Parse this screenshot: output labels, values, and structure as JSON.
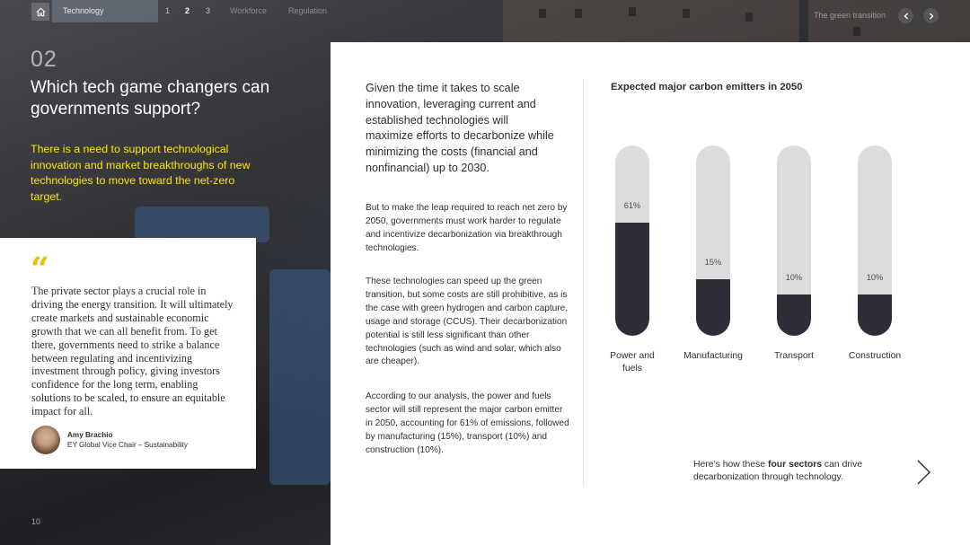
{
  "nav": {
    "section_label": "Technology",
    "pages": [
      "1",
      "2",
      "3"
    ],
    "current_page": "2",
    "workforce_label": "Workforce",
    "regulation_label": "Regulation",
    "right_label": "The green transition"
  },
  "left": {
    "section_number": "02",
    "title": "Which tech game changers can governments support?",
    "intro": "There is a need to support technological innovation and market breakthroughs of new technologies to move toward the net-zero target.",
    "page_number": "10",
    "quote_mark": "“",
    "quote": "The private sector plays a crucial role in driving the energy transition. It will ultimately create markets and sustainable economic growth that we can all benefit from. To get there, governments need to strike a balance between regulating and incentivizing investment through policy, giving investors confidence for the long term, enabling solutions to be scaled, to ensure an equitable impact for all.",
    "author_name": "Amy Brachio",
    "author_role": "EY Global Vice Chair – Sustainability"
  },
  "main": {
    "lead": "Given the time it takes to scale innovation, leveraging current and established technologies will maximize efforts to decarbonize while minimizing the costs (financial and nonfinancial) up to 2030.",
    "paragraphs": [
      "But to make the leap required to reach net zero by 2050, governments must work harder to regulate and incentivize decarbonization via breakthrough technologies.",
      "These technologies can speed up the green transition, but some costs are still prohibitive, as is the case with green hydrogen and carbon capture, usage and storage (CCUS). Their decarbonization potential is still less significant than other technologies (such as wind and solar, which also are cheaper).",
      "According to our analysis, the power and fuels sector will still represent the major carbon emitter in 2050, accounting for 61% of emissions, followed by manufacturing (15%), transport (10%) and construction (10%)."
    ],
    "cta_prefix": "Here’s how these ",
    "cta_bold": "four sectors",
    "cta_suffix": " can drive decarbonization through technology."
  },
  "chart_data": {
    "type": "bar",
    "title": "Expected major carbon emitters in 2050",
    "categories": [
      "Power and fuels",
      "Manufacturing",
      "Transport",
      "Construction"
    ],
    "values": [
      61,
      15,
      10,
      10
    ],
    "value_labels": [
      "61%",
      "15%",
      "10%",
      "10%"
    ],
    "ylim": [
      0,
      100
    ],
    "colors": {
      "fill": "#2e2e38",
      "track": "#dcdcdf"
    }
  },
  "colors": {
    "accent_yellow": "#ffe600",
    "dark": "#2e2e38"
  }
}
